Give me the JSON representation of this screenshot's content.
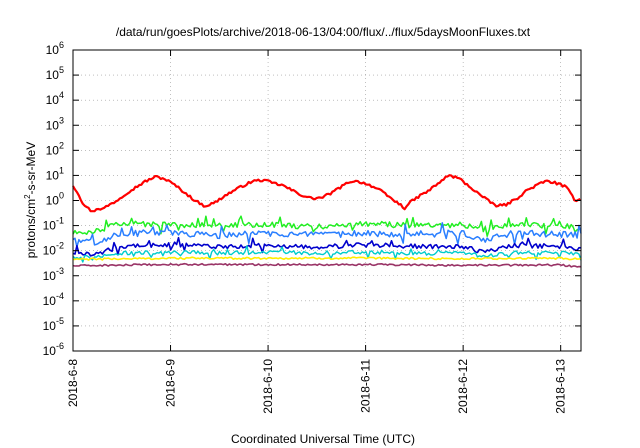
{
  "chart_data": {
    "type": "line",
    "title": "/data/run/goesPlots/archive/2018-06-13/04:00/flux/../flux/5daysMoonFluxes.txt",
    "xlabel": "Coordinated Universal Time (UTC)",
    "ylabel": {
      "pre": "protons/cm",
      "sup": "2",
      "post": "-s-sr-MeV"
    },
    "yscale": "log",
    "ylim": [
      -6,
      6
    ],
    "y_ticks": [
      {
        "exp": -6,
        "base": "10",
        "sup": "-6"
      },
      {
        "exp": -5,
        "base": "10",
        "sup": "-5"
      },
      {
        "exp": -4,
        "base": "10",
        "sup": "-4"
      },
      {
        "exp": -3,
        "base": "10",
        "sup": "-3"
      },
      {
        "exp": -2,
        "base": "10",
        "sup": "-2"
      },
      {
        "exp": -1,
        "base": "10",
        "sup": "-1"
      },
      {
        "exp": 0,
        "base": "10",
        "sup": "0"
      },
      {
        "exp": 1,
        "base": "10",
        "sup": "1"
      },
      {
        "exp": 2,
        "base": "10",
        "sup": "2"
      },
      {
        "exp": 3,
        "base": "10",
        "sup": "3"
      },
      {
        "exp": 4,
        "base": "10",
        "sup": "4"
      },
      {
        "exp": 5,
        "base": "10",
        "sup": "5"
      },
      {
        "exp": 6,
        "base": "10",
        "sup": "6"
      }
    ],
    "xlim": [
      "2018-06-08T00:00",
      "2018-06-13T05:00"
    ],
    "x_ticks": [
      {
        "t": "2018-06-08T00:00",
        "label": "2018-6-8"
      },
      {
        "t": "2018-06-09T00:00",
        "label": "2018-6-9"
      },
      {
        "t": "2018-06-10T00:00",
        "label": "2018-6-10"
      },
      {
        "t": "2018-06-11T00:00",
        "label": "2018-6-11"
      },
      {
        "t": "2018-06-12T00:00",
        "label": "2018-6-12"
      },
      {
        "t": "2018-06-13T00:00",
        "label": "2018-6-13"
      }
    ],
    "grid": true,
    "legend": "none",
    "series": [
      {
        "color": "#ff0000",
        "width": 2.2,
        "noise": 0.05,
        "points": [
          [
            "2018-06-08T00:00",
            4.0
          ],
          [
            "2018-06-08T01:12",
            2.0
          ],
          [
            "2018-06-08T02:24",
            0.8
          ],
          [
            "2018-06-08T03:36",
            0.5
          ],
          [
            "2018-06-08T04:48",
            0.35
          ],
          [
            "2018-06-08T06:00",
            0.5
          ],
          [
            "2018-06-08T07:12",
            0.45
          ],
          [
            "2018-06-08T08:24",
            0.6
          ],
          [
            "2018-06-08T10:48",
            1.0
          ],
          [
            "2018-06-08T13:12",
            2.0
          ],
          [
            "2018-06-08T15:36",
            3.5
          ],
          [
            "2018-06-08T18:00",
            6.0
          ],
          [
            "2018-06-08T20:24",
            9.0
          ],
          [
            "2018-06-08T22:48",
            7.0
          ],
          [
            "2018-06-09T01:12",
            4.0
          ],
          [
            "2018-06-09T03:36",
            2.0
          ],
          [
            "2018-06-09T06:00",
            1.0
          ],
          [
            "2018-06-09T08:24",
            0.6
          ],
          [
            "2018-06-09T10:48",
            0.8
          ],
          [
            "2018-06-09T13:12",
            1.5
          ],
          [
            "2018-06-09T15:36",
            2.5
          ],
          [
            "2018-06-09T18:00",
            4.0
          ],
          [
            "2018-06-09T20:24",
            6.0
          ],
          [
            "2018-06-09T22:48",
            6.5
          ],
          [
            "2018-06-10T01:12",
            5.0
          ],
          [
            "2018-06-10T03:36",
            4.0
          ],
          [
            "2018-06-10T06:00",
            2.5
          ],
          [
            "2018-06-10T08:24",
            1.6
          ],
          [
            "2018-06-10T10:48",
            1.2
          ],
          [
            "2018-06-10T13:12",
            1.3
          ],
          [
            "2018-06-10T15:36",
            2.0
          ],
          [
            "2018-06-10T18:00",
            3.5
          ],
          [
            "2018-06-10T20:24",
            6.0
          ],
          [
            "2018-06-10T22:48",
            5.5
          ],
          [
            "2018-06-11T01:12",
            4.0
          ],
          [
            "2018-06-11T03:36",
            2.5
          ],
          [
            "2018-06-11T06:00",
            1.3
          ],
          [
            "2018-06-11T08:24",
            0.7
          ],
          [
            "2018-06-11T09:36",
            0.5
          ],
          [
            "2018-06-11T10:48",
            0.8
          ],
          [
            "2018-06-11T13:12",
            1.5
          ],
          [
            "2018-06-11T15:36",
            2.5
          ],
          [
            "2018-06-11T18:00",
            5.0
          ],
          [
            "2018-06-11T20:24",
            10.0
          ],
          [
            "2018-06-11T22:48",
            8.0
          ],
          [
            "2018-06-12T01:12",
            4.0
          ],
          [
            "2018-06-12T03:36",
            2.0
          ],
          [
            "2018-06-12T06:00",
            1.0
          ],
          [
            "2018-06-12T08:24",
            0.6
          ],
          [
            "2018-06-12T10:48",
            0.7
          ],
          [
            "2018-06-12T13:12",
            1.2
          ],
          [
            "2018-06-12T15:36",
            2.5
          ],
          [
            "2018-06-12T18:00",
            4.0
          ],
          [
            "2018-06-12T20:24",
            6.0
          ],
          [
            "2018-06-12T22:48",
            5.0
          ],
          [
            "2018-06-13T01:12",
            3.5
          ],
          [
            "2018-06-13T02:24",
            2.0
          ],
          [
            "2018-06-13T03:36",
            1.0
          ],
          [
            "2018-06-13T04:48",
            1.2
          ]
        ]
      },
      {
        "color": "#22ee22",
        "width": 1.5,
        "noise": 0.11,
        "points": [
          [
            "2018-06-08T00:00",
            0.05
          ],
          [
            "2018-06-08T05:00",
            0.06
          ],
          [
            "2018-06-08T12:00",
            0.12
          ],
          [
            "2018-06-09T00:00",
            0.11
          ],
          [
            "2018-06-09T12:00",
            0.1
          ],
          [
            "2018-06-10T00:00",
            0.11
          ],
          [
            "2018-06-10T12:00",
            0.09
          ],
          [
            "2018-06-11T00:00",
            0.12
          ],
          [
            "2018-06-11T12:00",
            0.1
          ],
          [
            "2018-06-12T00:00",
            0.11
          ],
          [
            "2018-06-12T05:00",
            0.07
          ],
          [
            "2018-06-12T12:00",
            0.11
          ],
          [
            "2018-06-13T00:00",
            0.1
          ],
          [
            "2018-06-13T05:00",
            0.08
          ]
        ]
      },
      {
        "color": "#2a7fff",
        "width": 1.5,
        "noise": 0.13,
        "points": [
          [
            "2018-06-08T00:00",
            0.03
          ],
          [
            "2018-06-08T05:00",
            0.02
          ],
          [
            "2018-06-08T12:00",
            0.05
          ],
          [
            "2018-06-09T00:00",
            0.05
          ],
          [
            "2018-06-09T12:00",
            0.04
          ],
          [
            "2018-06-10T00:00",
            0.05
          ],
          [
            "2018-06-10T12:00",
            0.04
          ],
          [
            "2018-06-11T00:00",
            0.05
          ],
          [
            "2018-06-11T12:00",
            0.045
          ],
          [
            "2018-06-12T00:00",
            0.05
          ],
          [
            "2018-06-12T05:00",
            0.025
          ],
          [
            "2018-06-12T12:00",
            0.05
          ],
          [
            "2018-06-13T00:00",
            0.045
          ],
          [
            "2018-06-13T05:00",
            0.04
          ]
        ]
      },
      {
        "color": "#0000cc",
        "width": 1.6,
        "noise": 0.09,
        "points": [
          [
            "2018-06-08T00:00",
            0.008
          ],
          [
            "2018-06-08T05:00",
            0.007
          ],
          [
            "2018-06-08T12:00",
            0.015
          ],
          [
            "2018-06-09T00:00",
            0.018
          ],
          [
            "2018-06-09T12:00",
            0.014
          ],
          [
            "2018-06-10T00:00",
            0.016
          ],
          [
            "2018-06-10T12:00",
            0.014
          ],
          [
            "2018-06-11T00:00",
            0.017
          ],
          [
            "2018-06-11T12:00",
            0.015
          ],
          [
            "2018-06-12T00:00",
            0.014
          ],
          [
            "2018-06-12T05:00",
            0.009
          ],
          [
            "2018-06-12T12:00",
            0.016
          ],
          [
            "2018-06-13T00:00",
            0.015
          ],
          [
            "2018-06-13T05:00",
            0.012
          ]
        ]
      },
      {
        "color": "#00cccc",
        "width": 1.4,
        "noise": 0.08,
        "points": [
          [
            "2018-06-08T00:00",
            0.006
          ],
          [
            "2018-06-08T05:00",
            0.005
          ],
          [
            "2018-06-08T12:00",
            0.008
          ],
          [
            "2018-06-09T00:00",
            0.009
          ],
          [
            "2018-06-09T12:00",
            0.008
          ],
          [
            "2018-06-10T00:00",
            0.009
          ],
          [
            "2018-06-10T12:00",
            0.008
          ],
          [
            "2018-06-11T00:00",
            0.009
          ],
          [
            "2018-06-11T12:00",
            0.008
          ],
          [
            "2018-06-12T00:00",
            0.008
          ],
          [
            "2018-06-12T05:00",
            0.006
          ],
          [
            "2018-06-12T12:00",
            0.008
          ],
          [
            "2018-06-13T00:00",
            0.008
          ],
          [
            "2018-06-13T05:00",
            0.007
          ]
        ]
      },
      {
        "color": "#ffee00",
        "width": 1.6,
        "noise": 0.04,
        "points": [
          [
            "2018-06-08T00:00",
            0.0045
          ],
          [
            "2018-06-09T00:00",
            0.005
          ],
          [
            "2018-06-10T00:00",
            0.005
          ],
          [
            "2018-06-11T00:00",
            0.005
          ],
          [
            "2018-06-12T00:00",
            0.0048
          ],
          [
            "2018-06-13T00:00",
            0.005
          ],
          [
            "2018-06-13T05:00",
            0.0045
          ]
        ]
      },
      {
        "color": "#993366",
        "width": 1.6,
        "noise": 0.035,
        "points": [
          [
            "2018-06-08T00:00",
            0.0025
          ],
          [
            "2018-06-09T00:00",
            0.0028
          ],
          [
            "2018-06-10T00:00",
            0.0028
          ],
          [
            "2018-06-11T00:00",
            0.0028
          ],
          [
            "2018-06-12T00:00",
            0.0026
          ],
          [
            "2018-06-13T00:00",
            0.0027
          ],
          [
            "2018-06-13T05:00",
            0.0022
          ]
        ]
      }
    ]
  }
}
